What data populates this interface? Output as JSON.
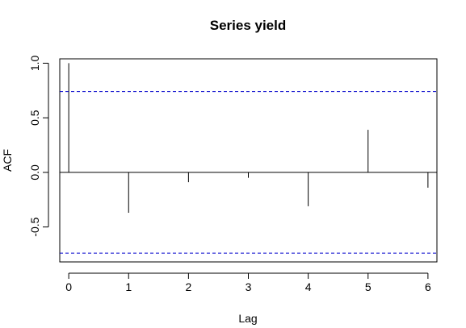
{
  "chart_data": {
    "type": "bar",
    "title": "Series  yield",
    "xlabel": "Lag",
    "ylabel": "ACF",
    "x": [
      0,
      1,
      2,
      3,
      4,
      5,
      6
    ],
    "values": [
      1.0,
      -0.37,
      -0.09,
      -0.05,
      -0.31,
      0.39,
      -0.14
    ],
    "xlim": [
      -0.15,
      6.15
    ],
    "ylim": [
      -0.82,
      1.04
    ],
    "x_ticks": [
      "0",
      "1",
      "2",
      "3",
      "4",
      "5",
      "6"
    ],
    "y_ticks": [
      "-0.5",
      "0.0",
      "0.5",
      "1.0"
    ],
    "confidence_limit": 0.74,
    "confidence_color": "#0000cc",
    "grid": false,
    "legend": "none"
  }
}
